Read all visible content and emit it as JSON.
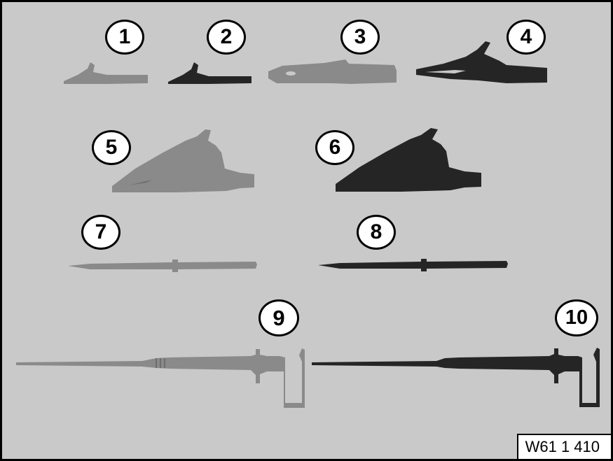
{
  "figure": {
    "code": "W61 1 410",
    "colors": {
      "background": "#c9c9c9",
      "grey_item": "#8a8a8a",
      "dark_item": "#252525"
    },
    "items": [
      {
        "number": "1",
        "shade": "grey",
        "kind": "small-alligator-clip"
      },
      {
        "number": "2",
        "shade": "dark",
        "kind": "small-alligator-clip"
      },
      {
        "number": "3",
        "shade": "grey",
        "kind": "alligator-clip"
      },
      {
        "number": "4",
        "shade": "dark",
        "kind": "alligator-clip"
      },
      {
        "number": "5",
        "shade": "grey",
        "kind": "large-insulated-clip"
      },
      {
        "number": "6",
        "shade": "dark",
        "kind": "large-insulated-clip"
      },
      {
        "number": "7",
        "shade": "grey",
        "kind": "test-probe"
      },
      {
        "number": "8",
        "shade": "dark",
        "kind": "test-probe"
      },
      {
        "number": "9",
        "shade": "grey",
        "kind": "long-test-probe"
      },
      {
        "number": "10",
        "shade": "dark",
        "kind": "long-test-probe"
      }
    ]
  }
}
